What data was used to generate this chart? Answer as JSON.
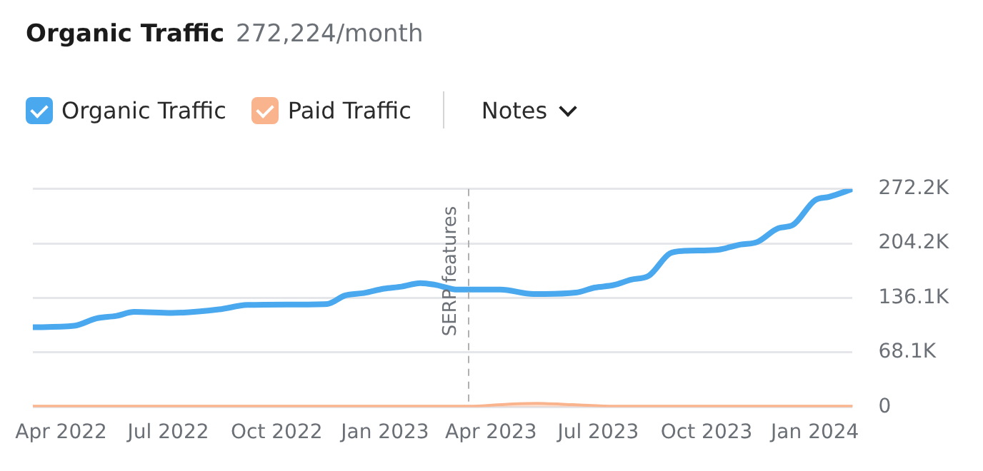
{
  "chart_data": {
    "type": "line",
    "title": "Organic Traffic",
    "subtitle": "272,224/month",
    "annotations": [
      "Notes"
    ],
    "xlim": [
      "2022-03-08",
      "2024-02-02"
    ],
    "xticks": [
      {
        "value": "2022-04-01",
        "label": "Apr 2022"
      },
      {
        "value": "2022-07-01",
        "label": "Jul 2022"
      },
      {
        "value": "2022-10-01",
        "label": "Oct 2022"
      },
      {
        "value": "2023-01-01",
        "label": "Jan 2023"
      },
      {
        "value": "2023-04-01",
        "label": "Apr 2023"
      },
      {
        "value": "2023-07-01",
        "label": "Jul 2023"
      },
      {
        "value": "2023-10-01",
        "label": "Oct 2023"
      },
      {
        "value": "2024-01-01",
        "label": "Jan 2024"
      }
    ],
    "ylim": [
      0,
      272200
    ],
    "yticks": [
      {
        "value": 0,
        "label": "0"
      },
      {
        "value": 68100,
        "label": "68.1K"
      },
      {
        "value": 136100,
        "label": "136.1K"
      },
      {
        "value": 204200,
        "label": "204.2K"
      },
      {
        "value": 272200,
        "label": "272.2K"
      }
    ],
    "grid": "y",
    "legend": "top left",
    "marker": "none",
    "ref_lines": [
      {
        "axis": "x",
        "value": "2023-03-13",
        "label": "SERP features",
        "color": "#b0b0b0",
        "line_style": "dashed"
      }
    ],
    "series": [
      {
        "name": "Organic Traffic",
        "color": "#4aa8ee",
        "x": [
          "2022-03-08",
          "2022-04-12",
          "2022-05-01",
          "2022-05-18",
          "2022-06-02",
          "2022-07-04",
          "2022-08-13",
          "2022-09-06",
          "2022-10-12",
          "2022-11-13",
          "2022-11-28",
          "2022-12-14",
          "2022-12-31",
          "2023-01-15",
          "2023-01-31",
          "2023-02-12",
          "2023-03-04",
          "2023-03-16",
          "2023-04-09",
          "2023-05-07",
          "2023-06-12",
          "2023-06-28",
          "2023-07-14",
          "2023-07-29",
          "2023-08-13",
          "2023-08-31",
          "2023-09-12",
          "2023-10-09",
          "2023-10-30",
          "2023-11-13",
          "2023-12-01",
          "2023-12-13",
          "2024-01-01",
          "2024-01-13",
          "2024-02-02"
        ],
        "values": [
          99600,
          101400,
          110700,
          113800,
          118800,
          117500,
          121900,
          127400,
          128000,
          128700,
          139200,
          142300,
          147800,
          150300,
          154700,
          152800,
          146600,
          146600,
          146600,
          141000,
          142900,
          149100,
          152200,
          159000,
          163900,
          191800,
          194900,
          196100,
          202900,
          206000,
          223300,
          227000,
          258000,
          262300,
          272200
        ]
      },
      {
        "name": "Paid Traffic",
        "type": "area",
        "color": "#f9b48e",
        "x": [
          "2022-03-08",
          "2023-03-13",
          "2023-04-15",
          "2023-05-10",
          "2023-06-10",
          "2023-07-15",
          "2024-02-02"
        ],
        "values": [
          1000,
          1000,
          3500,
          4500,
          3000,
          1000,
          1000
        ]
      }
    ]
  }
}
